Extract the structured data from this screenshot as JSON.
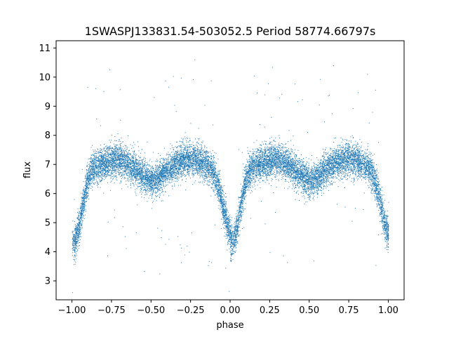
{
  "chart_data": {
    "type": "scatter",
    "title": "1SWASPJ133831.54-503052.5 Period 58774.66797s",
    "xlabel": "phase",
    "ylabel": "flux",
    "xlim": [
      -1.1,
      1.1
    ],
    "ylim": [
      2.35,
      11.25
    ],
    "xticks": [
      -1.0,
      -0.75,
      -0.5,
      -0.25,
      0.0,
      0.25,
      0.5,
      0.75,
      1.0
    ],
    "xtick_labels": [
      "−1.00",
      "−0.75",
      "−0.50",
      "−0.25",
      "0.00",
      "0.25",
      "0.50",
      "0.75",
      "1.00"
    ],
    "yticks": [
      3,
      4,
      5,
      6,
      7,
      8,
      9,
      10,
      11
    ],
    "ytick_labels": [
      "3",
      "4",
      "5",
      "6",
      "7",
      "8",
      "9",
      "10",
      "11"
    ],
    "grid": false,
    "legend": "none",
    "point_color": "#1f77b4",
    "light_curve_profile": {
      "phase": [
        0.0,
        0.02,
        0.04,
        0.06,
        0.08,
        0.1,
        0.12,
        0.15,
        0.2,
        0.25,
        0.3,
        0.35,
        0.4,
        0.45,
        0.5,
        0.55,
        0.6,
        0.65,
        0.7,
        0.75,
        0.8,
        0.85,
        0.88,
        0.9,
        0.92,
        0.94,
        0.96,
        0.98,
        1.0
      ],
      "flux": [
        4.3,
        4.4,
        4.8,
        5.4,
        6.0,
        6.5,
        6.8,
        6.95,
        7.05,
        7.15,
        7.15,
        7.05,
        6.85,
        6.6,
        6.45,
        6.55,
        6.8,
        7.0,
        7.15,
        7.2,
        7.15,
        7.0,
        6.85,
        6.65,
        6.3,
        5.9,
        5.4,
        4.9,
        4.6
      ]
    },
    "scatter_sd": 0.28,
    "outlier_fraction": 0.012,
    "point_count": 14000
  }
}
